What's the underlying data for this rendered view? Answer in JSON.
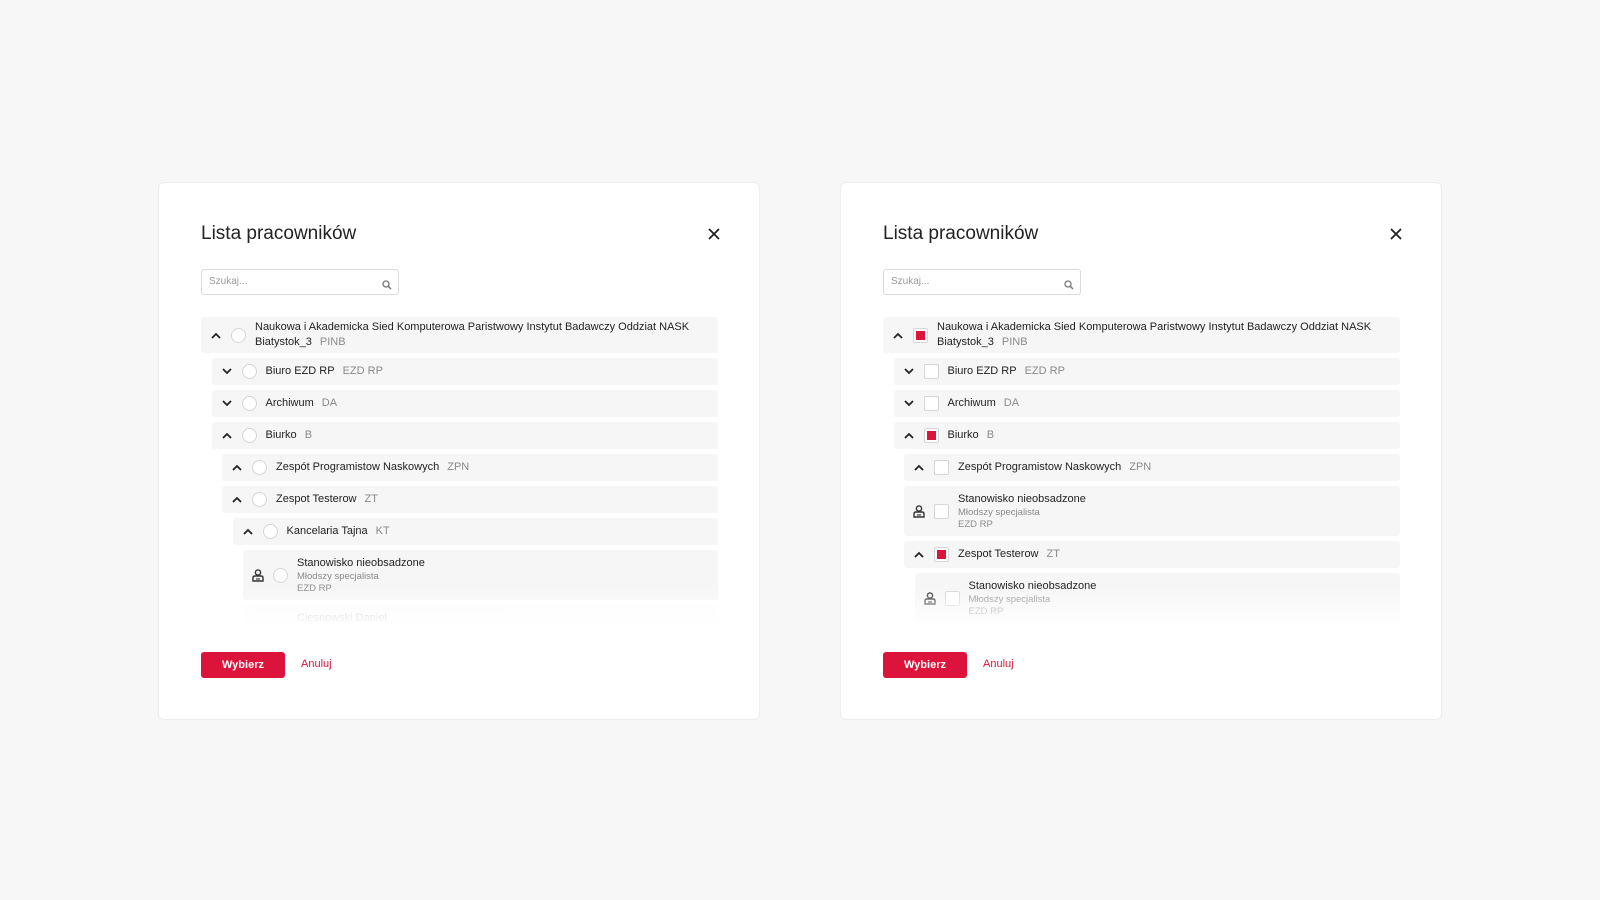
{
  "accent_color": "#dc143c",
  "dialogs": [
    {
      "title": "Lista pracowników",
      "search_placeholder": "Szukaj...",
      "select_type": "radio",
      "submit_label": "Wybierz",
      "cancel_label": "Anuluj",
      "items": [
        {
          "level": 0,
          "type": "unit",
          "expanded": true,
          "checked": false,
          "name": "Naukowa i Akademicka Sied Komputerowa Paristwowy Instytut Badawczy Oddziat NASK Biatystok_3",
          "code": "PINB"
        },
        {
          "level": 1,
          "type": "unit",
          "expanded": false,
          "checked": false,
          "name": "Biuro EZD RP",
          "code": "EZD RP"
        },
        {
          "level": 1,
          "type": "unit",
          "expanded": false,
          "checked": false,
          "name": "Archiwum",
          "code": "DA"
        },
        {
          "level": 1,
          "type": "unit",
          "expanded": true,
          "checked": false,
          "name": "Biurko",
          "code": "B"
        },
        {
          "level": 2,
          "type": "unit",
          "expanded": true,
          "checked": false,
          "name": "Zespót Programistow Naskowych",
          "code": "ZPN"
        },
        {
          "level": 2,
          "type": "unit",
          "expanded": true,
          "checked": false,
          "name": "Zespot Testerow",
          "code": "ZT"
        },
        {
          "level": 3,
          "type": "unit",
          "expanded": true,
          "checked": false,
          "name": "Kancelaria Tajna",
          "code": "KT"
        },
        {
          "level": 4,
          "type": "position",
          "checked": false,
          "name": "Stanowisko nieobsadzone",
          "role": "Młodszy specjalista",
          "unit": "EZD RP"
        },
        {
          "level": 4,
          "type": "person",
          "checked": false,
          "name": "Ciesnowski Daniel"
        }
      ]
    },
    {
      "title": "Lista pracowników",
      "search_placeholder": "Szukaj...",
      "select_type": "checkbox",
      "submit_label": "Wybierz",
      "cancel_label": "Anuluj",
      "items": [
        {
          "level": 0,
          "type": "unit",
          "expanded": true,
          "checked": true,
          "name": "Naukowa i Akademicka Sied Komputerowa Paristwowy Instytut Badawczy Oddziat NASK Biatystok_3",
          "code": "PINB"
        },
        {
          "level": 1,
          "type": "unit",
          "expanded": false,
          "checked": false,
          "name": "Biuro EZD RP",
          "code": "EZD RP"
        },
        {
          "level": 1,
          "type": "unit",
          "expanded": false,
          "checked": false,
          "name": "Archiwum",
          "code": "DA"
        },
        {
          "level": 1,
          "type": "unit",
          "expanded": true,
          "checked": true,
          "name": "Biurko",
          "code": "B"
        },
        {
          "level": 2,
          "type": "unit",
          "expanded": true,
          "checked": false,
          "name": "Zespót Programistow Naskowych",
          "code": "ZPN"
        },
        {
          "level": 2,
          "type": "position",
          "checked": false,
          "name": "Stanowisko nieobsadzone",
          "role": "Młodszy specjalista",
          "unit": "EZD RP"
        },
        {
          "level": 2,
          "type": "unit",
          "expanded": true,
          "checked": true,
          "name": "Zespot Testerow",
          "code": "ZT"
        },
        {
          "level": 3,
          "type": "position",
          "checked": false,
          "name": "Stanowisko nieobsadzone",
          "role": "Młodszy specjalista",
          "unit": "EZD RP"
        }
      ]
    }
  ]
}
